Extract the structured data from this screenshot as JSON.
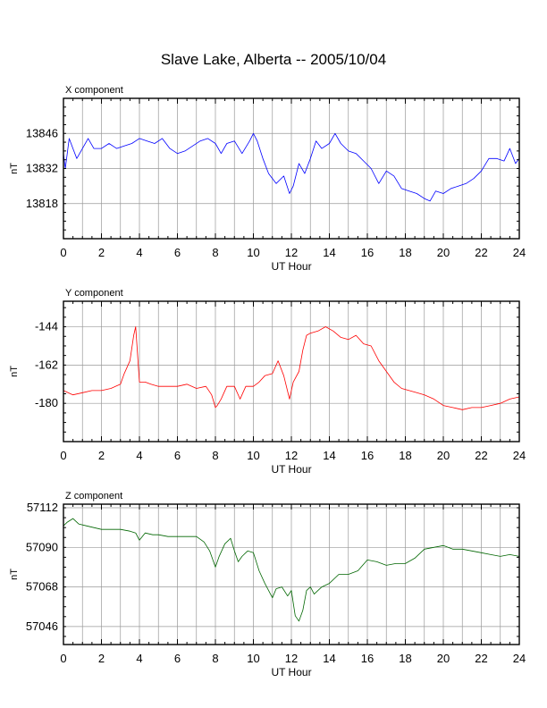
{
  "title": "Slave Lake, Alberta -- 2005/10/04",
  "chart_data": [
    {
      "type": "line",
      "panel_title": "X component",
      "xlabel": "UT Hour",
      "ylabel": "nT",
      "xlim": [
        0,
        24
      ],
      "ylim": [
        13804,
        13860
      ],
      "xticks": [
        0,
        2,
        4,
        6,
        8,
        10,
        12,
        14,
        16,
        18,
        20,
        22,
        24
      ],
      "yticks": [
        13818,
        13832,
        13846
      ],
      "grid": true,
      "color": "#0000ff",
      "x": [
        0,
        0.1,
        0.3,
        0.5,
        0.7,
        1.0,
        1.3,
        1.6,
        2.0,
        2.4,
        2.8,
        3.2,
        3.6,
        4.0,
        4.4,
        4.8,
        5.2,
        5.6,
        6.0,
        6.4,
        6.8,
        7.2,
        7.6,
        8.0,
        8.3,
        8.6,
        9.0,
        9.4,
        9.8,
        10.0,
        10.2,
        10.5,
        10.8,
        11.2,
        11.6,
        11.9,
        12.1,
        12.4,
        12.7,
        13.0,
        13.3,
        13.6,
        14.0,
        14.3,
        14.6,
        15.0,
        15.4,
        15.8,
        16.2,
        16.6,
        17.0,
        17.4,
        17.8,
        18.2,
        18.6,
        19.0,
        19.3,
        19.6,
        20.0,
        20.4,
        20.8,
        21.2,
        21.6,
        22.0,
        22.4,
        22.8,
        23.2,
        23.5,
        23.8,
        24.0
      ],
      "y": [
        13838,
        13832,
        13844,
        13840,
        13836,
        13840,
        13844,
        13840,
        13840,
        13842,
        13840,
        13841,
        13842,
        13844,
        13843,
        13842,
        13844,
        13840,
        13838,
        13839,
        13841,
        13843,
        13844,
        13842,
        13838,
        13842,
        13843,
        13838,
        13843,
        13846,
        13843,
        13836,
        13830,
        13826,
        13829,
        13822,
        13825,
        13834,
        13830,
        13836,
        13843,
        13840,
        13842,
        13846,
        13842,
        13839,
        13838,
        13835,
        13832,
        13826,
        13831,
        13829,
        13824,
        13823,
        13822,
        13820,
        13819,
        13823,
        13822,
        13824,
        13825,
        13826,
        13828,
        13831,
        13836,
        13836,
        13835,
        13840,
        13834,
        13836
      ]
    },
    {
      "type": "line",
      "panel_title": "Y component",
      "xlabel": "UT Hour",
      "ylabel": "nT",
      "xlim": [
        0,
        24
      ],
      "ylim": [
        -198,
        -132
      ],
      "xticks": [
        0,
        2,
        4,
        6,
        8,
        10,
        12,
        14,
        16,
        18,
        20,
        22,
        24
      ],
      "yticks": [
        -180,
        -162,
        -144
      ],
      "grid": true,
      "color": "#ff0000",
      "x": [
        0,
        0.5,
        1.0,
        1.5,
        2.0,
        2.5,
        3.0,
        3.2,
        3.5,
        3.7,
        3.8,
        4.0,
        4.3,
        4.6,
        5.0,
        5.5,
        6.0,
        6.5,
        7.0,
        7.5,
        7.8,
        8.0,
        8.1,
        8.3,
        8.6,
        9.0,
        9.3,
        9.6,
        10.0,
        10.3,
        10.6,
        11.0,
        11.3,
        11.6,
        11.9,
        12.1,
        12.4,
        12.6,
        12.8,
        13.0,
        13.4,
        13.8,
        14.2,
        14.6,
        15.0,
        15.4,
        15.8,
        16.2,
        16.6,
        17.0,
        17.4,
        17.8,
        18.2,
        18.6,
        19.0,
        19.5,
        20.0,
        20.5,
        21.0,
        21.5,
        22.0,
        22.5,
        23.0,
        23.5,
        24.0
      ],
      "y": [
        -174,
        -176,
        -175,
        -174,
        -174,
        -173,
        -171,
        -166,
        -160,
        -148,
        -144,
        -170,
        -170,
        -171,
        -172,
        -172,
        -172,
        -171,
        -173,
        -172,
        -176,
        -182,
        -181,
        -178,
        -172,
        -172,
        -178,
        -172,
        -172,
        -170,
        -167,
        -166,
        -160,
        -167,
        -178,
        -170,
        -165,
        -155,
        -148,
        -147,
        -146,
        -144,
        -146,
        -149,
        -150,
        -148,
        -152,
        -153,
        -160,
        -165,
        -170,
        -173,
        -174,
        -175,
        -176,
        -178,
        -181,
        -182,
        -183,
        -182,
        -182,
        -181,
        -180,
        -178,
        -177
      ]
    },
    {
      "type": "line",
      "panel_title": "Z component",
      "xlabel": "UT Hour",
      "ylabel": "nT",
      "xlim": [
        0,
        24
      ],
      "ylim": [
        57036,
        57114
      ],
      "xticks": [
        0,
        2,
        4,
        6,
        8,
        10,
        12,
        14,
        16,
        18,
        20,
        22,
        24
      ],
      "yticks": [
        57046,
        57068,
        57090,
        57112
      ],
      "grid": true,
      "color": "#006600",
      "x": [
        0,
        0.2,
        0.5,
        0.8,
        1.2,
        1.6,
        2.0,
        2.5,
        3.0,
        3.5,
        3.8,
        4.0,
        4.3,
        4.7,
        5.0,
        5.5,
        6.0,
        6.5,
        7.0,
        7.4,
        7.7,
        8.0,
        8.2,
        8.5,
        8.8,
        9.0,
        9.2,
        9.4,
        9.7,
        10.0,
        10.3,
        10.6,
        11.0,
        11.2,
        11.5,
        11.8,
        12.0,
        12.2,
        12.4,
        12.6,
        12.8,
        13.0,
        13.2,
        13.6,
        14.0,
        14.5,
        15.0,
        15.5,
        16.0,
        16.5,
        17.0,
        17.5,
        18.0,
        18.5,
        19.0,
        19.5,
        20.0,
        20.5,
        21.0,
        21.5,
        22.0,
        22.5,
        23.0,
        23.5,
        24.0
      ],
      "y": [
        57102,
        57104,
        57106,
        57103,
        57102,
        57101,
        57100,
        57100,
        57100,
        57099,
        57098,
        57094,
        57098,
        57097,
        57097,
        57096,
        57096,
        57096,
        57096,
        57093,
        57088,
        57079,
        57085,
        57092,
        57095,
        57088,
        57082,
        57085,
        57088,
        57087,
        57077,
        57070,
        57062,
        57067,
        57068,
        57063,
        57066,
        57052,
        57049,
        57055,
        57066,
        57068,
        57064,
        57068,
        57070,
        57075,
        57075,
        57077,
        57083,
        57082,
        57080,
        57081,
        57081,
        57084,
        57089,
        57090,
        57091,
        57089,
        57089,
        57088,
        57087,
        57086,
        57085,
        57086,
        57085
      ]
    }
  ]
}
